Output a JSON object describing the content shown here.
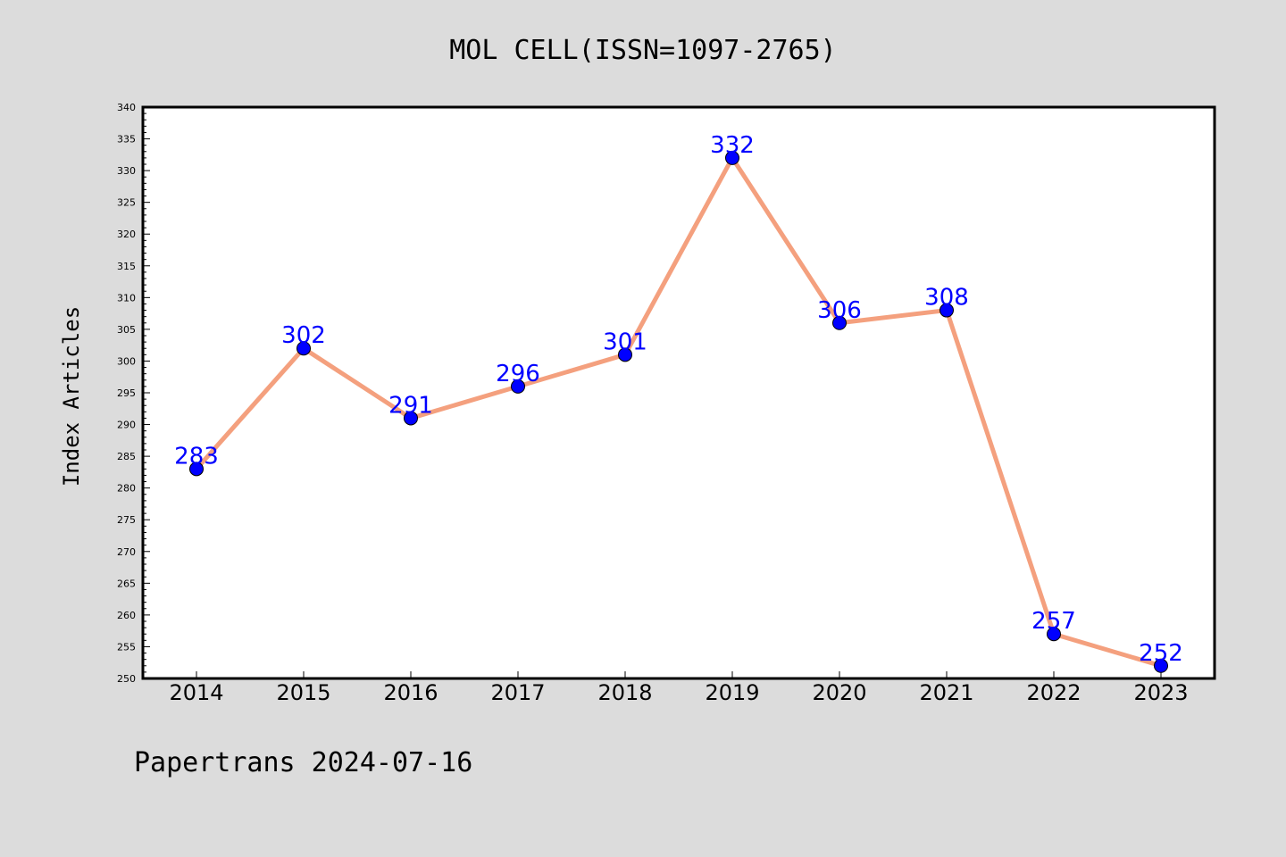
{
  "chart_data": {
    "type": "line",
    "title": "MOL CELL(ISSN=1097-2765)",
    "xlabel": "",
    "ylabel": "Index Articles",
    "categories": [
      "2014",
      "2015",
      "2016",
      "2017",
      "2018",
      "2019",
      "2020",
      "2021",
      "2022",
      "2023"
    ],
    "values": [
      283,
      302,
      291,
      296,
      301,
      332,
      306,
      308,
      257,
      252
    ],
    "ylim": [
      250,
      340
    ],
    "yticks": [
      250,
      255,
      260,
      265,
      270,
      275,
      280,
      285,
      290,
      295,
      300,
      305,
      310,
      315,
      320,
      325,
      330,
      335,
      340
    ],
    "y_minor_step": 1,
    "grid": false,
    "line_color": "#f4a07e",
    "marker_color": "#0000ff",
    "label_color": "#0000ff",
    "data_labels": true
  },
  "footer": {
    "text": "Papertrans 2024-07-16"
  },
  "colors": {
    "background": "#dcdcdc",
    "plot_background": "#ffffff"
  }
}
